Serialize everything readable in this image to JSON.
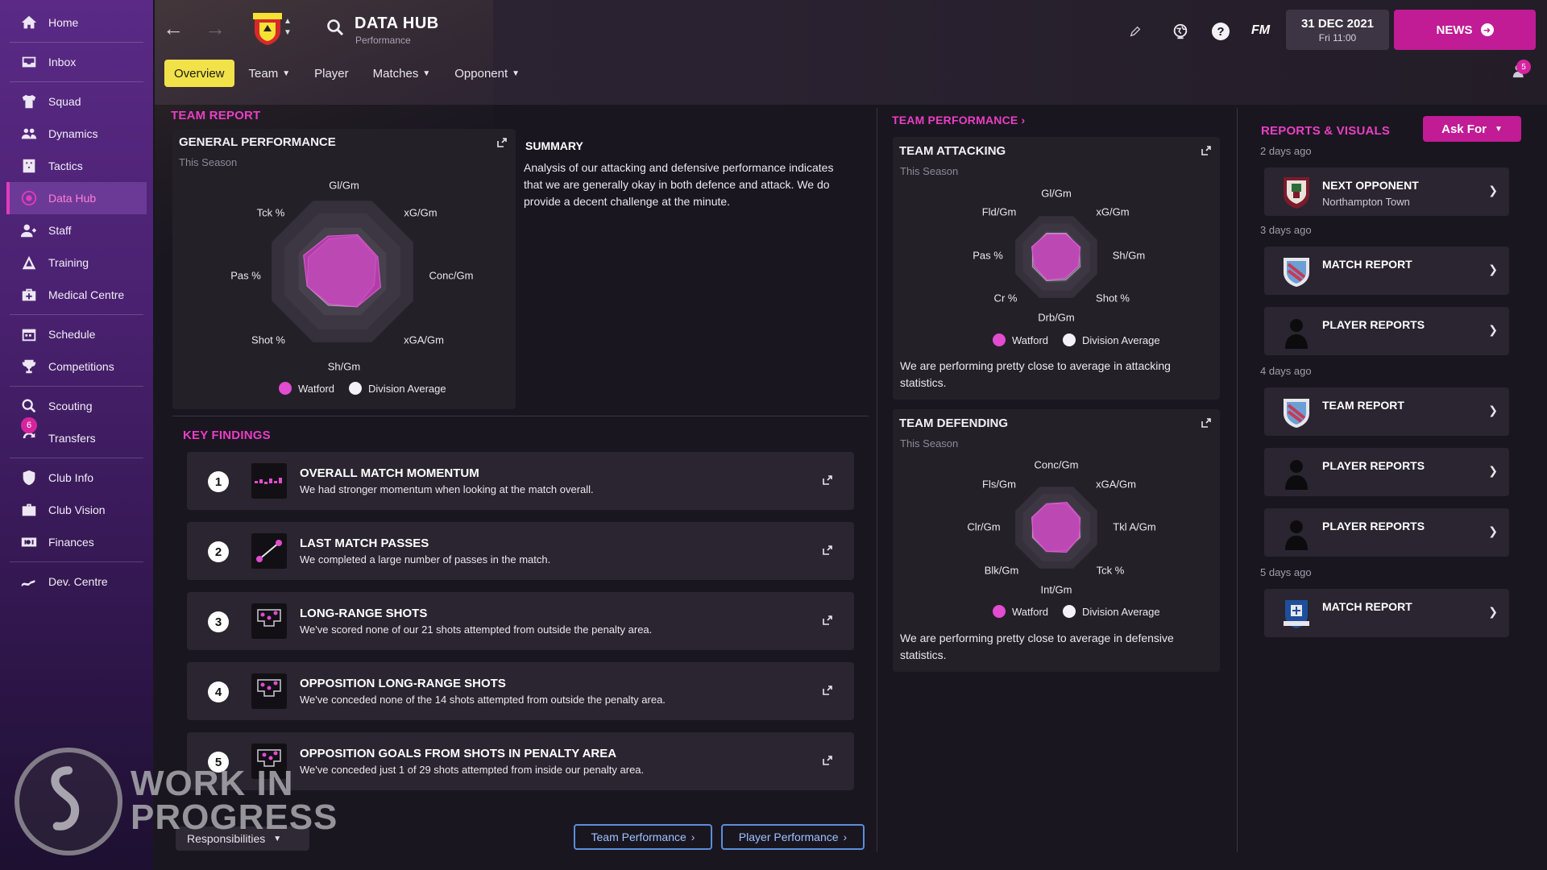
{
  "sidebar": {
    "items": [
      {
        "label": "Home",
        "icon": "home-icon"
      },
      {
        "label": "Inbox",
        "icon": "inbox-icon"
      },
      {
        "label": "Squad",
        "icon": "shirt-icon"
      },
      {
        "label": "Dynamics",
        "icon": "people-icon"
      },
      {
        "label": "Tactics",
        "icon": "tactics-icon"
      },
      {
        "label": "Data Hub",
        "icon": "data-hub-icon"
      },
      {
        "label": "Staff",
        "icon": "staff-icon"
      },
      {
        "label": "Training",
        "icon": "training-icon"
      },
      {
        "label": "Medical Centre",
        "icon": "medical-icon"
      },
      {
        "label": "Schedule",
        "icon": "calendar-icon"
      },
      {
        "label": "Competitions",
        "icon": "trophy-icon"
      },
      {
        "label": "Scouting",
        "icon": "search-icon"
      },
      {
        "label": "Transfers",
        "icon": "transfers-icon",
        "badge": "6"
      },
      {
        "label": "Club Info",
        "icon": "shield-icon"
      },
      {
        "label": "Club Vision",
        "icon": "briefcase-icon"
      },
      {
        "label": "Finances",
        "icon": "finance-icon"
      },
      {
        "label": "Dev. Centre",
        "icon": "dev-centre-icon"
      }
    ]
  },
  "header": {
    "title": "DATA HUB",
    "subtitle": "Performance",
    "date": "31 DEC 2021",
    "time": "Fri 11:00",
    "news_label": "NEWS",
    "fm_label": "FM",
    "notification_count": "5",
    "tabs": [
      "Overview",
      "Team",
      "Player",
      "Matches",
      "Opponent"
    ]
  },
  "team_report": {
    "heading": "TEAM REPORT",
    "general": {
      "title": "GENERAL PERFORMANCE",
      "subtitle": "This Season",
      "axes": [
        "Gl/Gm",
        "xG/Gm",
        "Conc/Gm",
        "xGA/Gm",
        "Sh/Gm",
        "Shot %",
        "Pas %",
        "Tck %"
      ],
      "legend": [
        "Watford",
        "Division Average"
      ]
    },
    "summary_heading": "SUMMARY",
    "summary_text": "Analysis of our attacking and defensive performance indicates that we are generally okay in both defence and attack. We do provide a decent challenge at the minute."
  },
  "key_findings": {
    "heading": "KEY FINDINGS",
    "items": [
      {
        "num": "1",
        "title": "OVERALL MATCH MOMENTUM",
        "desc": "We had stronger momentum when looking at the match overall."
      },
      {
        "num": "2",
        "title": "LAST MATCH PASSES",
        "desc": "We completed a large number of passes in the match."
      },
      {
        "num": "3",
        "title": "LONG-RANGE SHOTS",
        "desc": "We've scored none of our 21 shots attempted from outside the penalty area."
      },
      {
        "num": "4",
        "title": "OPPOSITION LONG-RANGE SHOTS",
        "desc": "We've conceded none of the 14 shots attempted from outside the penalty area."
      },
      {
        "num": "5",
        "title": "OPPOSITION GOALS FROM SHOTS IN PENALTY AREA",
        "desc": "We've conceded just 1 of 29 shots attempted from inside our penalty area."
      }
    ],
    "team_performance_btn": "Team Performance",
    "player_performance_btn": "Player Performance",
    "responsibilities": "Responsibilities"
  },
  "team_performance": {
    "heading": "TEAM PERFORMANCE",
    "attacking": {
      "title": "TEAM ATTACKING",
      "subtitle": "This Season",
      "axes": [
        "Gl/Gm",
        "xG/Gm",
        "Sh/Gm",
        "Shot %",
        "Drb/Gm",
        "Cr %",
        "Pas %",
        "Fld/Gm"
      ],
      "legend": [
        "Watford",
        "Division Average"
      ],
      "text": "We are performing pretty close to average in attacking statistics."
    },
    "defending": {
      "title": "TEAM DEFENDING",
      "subtitle": "This Season",
      "axes": [
        "Conc/Gm",
        "xGA/Gm",
        "Tkl A/Gm",
        "Tck %",
        "Int/Gm",
        "Blk/Gm",
        "Clr/Gm",
        "Fls/Gm"
      ],
      "legend": [
        "Watford",
        "Division Average"
      ],
      "text": "We are performing pretty close to average in defensive statistics."
    }
  },
  "reports": {
    "heading": "REPORTS & VISUALS",
    "ask_for": "Ask For",
    "groups": [
      {
        "ago": "2 days ago",
        "items": [
          {
            "title": "NEXT OPPONENT",
            "sub": "Northampton Town",
            "icon": "northampton-crest-icon"
          }
        ]
      },
      {
        "ago": "3 days ago",
        "items": [
          {
            "title": "MATCH REPORT",
            "sub": "",
            "icon": "club-crest-icon"
          },
          {
            "title": "PLAYER REPORTS",
            "sub": "",
            "icon": "player-silhouette-icon"
          }
        ]
      },
      {
        "ago": "4 days ago",
        "items": [
          {
            "title": "TEAM REPORT",
            "sub": "",
            "icon": "club-crest-icon"
          },
          {
            "title": "PLAYER REPORTS",
            "sub": "",
            "icon": "player-silhouette-icon"
          },
          {
            "title": "PLAYER REPORTS",
            "sub": "",
            "icon": "player-silhouette-icon"
          }
        ]
      },
      {
        "ago": "5 days ago",
        "items": [
          {
            "title": "MATCH REPORT",
            "sub": "",
            "icon": "blue-crest-icon"
          }
        ]
      }
    ]
  },
  "watermark": {
    "text1": "WORK IN",
    "text2": "PROGRESS"
  },
  "colors": {
    "accent": "#e93fc4",
    "active_tab": "#f2e24a",
    "news": "#c11b95",
    "watford_series": "#e14cd0"
  }
}
